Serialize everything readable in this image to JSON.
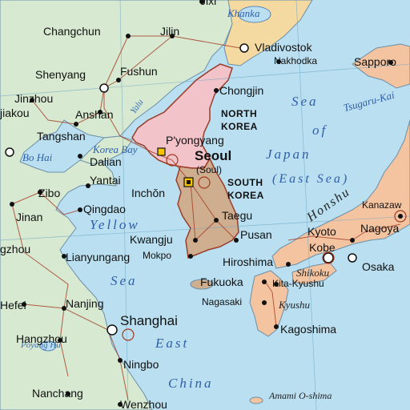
{
  "map": {
    "countries": [
      {
        "id": "north-korea-line1",
        "text": "NORTH"
      },
      {
        "id": "north-korea-line2",
        "text": "KOREA"
      },
      {
        "id": "south-korea-line1",
        "text": "SOUTH"
      },
      {
        "id": "south-korea-line2",
        "text": "KOREA"
      }
    ],
    "capitals": [
      {
        "id": "pyongyang",
        "name": "P'yongyang"
      },
      {
        "id": "seoul",
        "name": "Seoul"
      },
      {
        "id": "seoul-alt",
        "name": "(Soul)"
      }
    ],
    "cities": [
      {
        "id": "jixi",
        "name": "Jixi"
      },
      {
        "id": "changchun",
        "name": "Changchun"
      },
      {
        "id": "jilin",
        "name": "Jilin"
      },
      {
        "id": "vladivostok",
        "name": "Vladivostok"
      },
      {
        "id": "nakhodka",
        "name": "Nakhodka"
      },
      {
        "id": "sapporo",
        "name": "Sapporo"
      },
      {
        "id": "shenyang",
        "name": "Shenyang"
      },
      {
        "id": "fushun",
        "name": "Fushun"
      },
      {
        "id": "chongjin",
        "name": "Chongjin"
      },
      {
        "id": "jinzhou",
        "name": "Jinzhou"
      },
      {
        "id": "anshan",
        "name": "Anshan"
      },
      {
        "id": "jiakou",
        "name": "jiakou"
      },
      {
        "id": "tangshan",
        "name": "Tangshan"
      },
      {
        "id": "dalian",
        "name": "Dalian"
      },
      {
        "id": "yantai",
        "name": "Yantai"
      },
      {
        "id": "inchon",
        "name": "Inchŏn"
      },
      {
        "id": "zibo",
        "name": "Zibo"
      },
      {
        "id": "qingdao",
        "name": "Qingdao"
      },
      {
        "id": "taegu",
        "name": "Taegu"
      },
      {
        "id": "kanazaw",
        "name": "Kanazaw"
      },
      {
        "id": "jinan",
        "name": "Jinan"
      },
      {
        "id": "kyoto",
        "name": "Kyoto"
      },
      {
        "id": "nagoya",
        "name": "Nagoya"
      },
      {
        "id": "pusan",
        "name": "Pusan"
      },
      {
        "id": "kwangju",
        "name": "Kwangju"
      },
      {
        "id": "gzhou",
        "name": "gzhou"
      },
      {
        "id": "kobe",
        "name": "Kobe"
      },
      {
        "id": "mokpo",
        "name": "Mokpo"
      },
      {
        "id": "lianyungang",
        "name": "Lianyungang"
      },
      {
        "id": "hiroshima",
        "name": "Hiroshima"
      },
      {
        "id": "osaka",
        "name": "Osaka"
      },
      {
        "id": "fukuoka",
        "name": "Fukuoka"
      },
      {
        "id": "kita-kyushu",
        "name": "Kita-Kyushu"
      },
      {
        "id": "hefei",
        "name": "Hefei"
      },
      {
        "id": "nanjing",
        "name": "Nanjing"
      },
      {
        "id": "nagasaki",
        "name": "Nagasaki"
      },
      {
        "id": "shanghai",
        "name": "Shanghai"
      },
      {
        "id": "kagoshima",
        "name": "Kagoshima"
      },
      {
        "id": "hangzhou",
        "name": "Hangzhou"
      },
      {
        "id": "ningbo",
        "name": "Ningbo"
      },
      {
        "id": "nanchang",
        "name": "Nanchang"
      },
      {
        "id": "wenzhou",
        "name": "Wenzhou"
      }
    ],
    "water": [
      {
        "id": "khanka",
        "text": "Khanka"
      },
      {
        "id": "sea-of-japan-sea",
        "text": "Sea"
      },
      {
        "id": "sea-of-japan-of",
        "text": "of"
      },
      {
        "id": "sea-of-japan-japan",
        "text": "Japan"
      },
      {
        "id": "east-sea",
        "text": "(East Sea)"
      },
      {
        "id": "tsugaru",
        "text": "Tsugaru-Kai"
      },
      {
        "id": "yalu",
        "text": "Yalu"
      },
      {
        "id": "korea-bay",
        "text": "Korea Bay"
      },
      {
        "id": "bo-hai",
        "text": "Bo Hai"
      },
      {
        "id": "yellow",
        "text": "Yellow"
      },
      {
        "id": "yellow-sea",
        "text": "Sea"
      },
      {
        "id": "east",
        "text": "East"
      },
      {
        "id": "china-sea",
        "text": "China"
      },
      {
        "id": "poyang-hu",
        "text": "Poyang Hu"
      }
    ],
    "islands": [
      {
        "id": "honshu",
        "text": "Honshu"
      },
      {
        "id": "shikoku",
        "text": "Shikoku"
      },
      {
        "id": "kyushu",
        "text": "Kyushu"
      },
      {
        "id": "amami",
        "text": "Amami O-shima"
      }
    ],
    "colors": {
      "sea": "#b9dff0",
      "china": "#d7e9d0",
      "north_korea": "#f2c4c9",
      "south_korea": "#cfae8f",
      "russia": "#f4d9a0",
      "japan": "#f4c4a0",
      "border": "#9b3d2a",
      "roads": "#a33a22"
    }
  }
}
